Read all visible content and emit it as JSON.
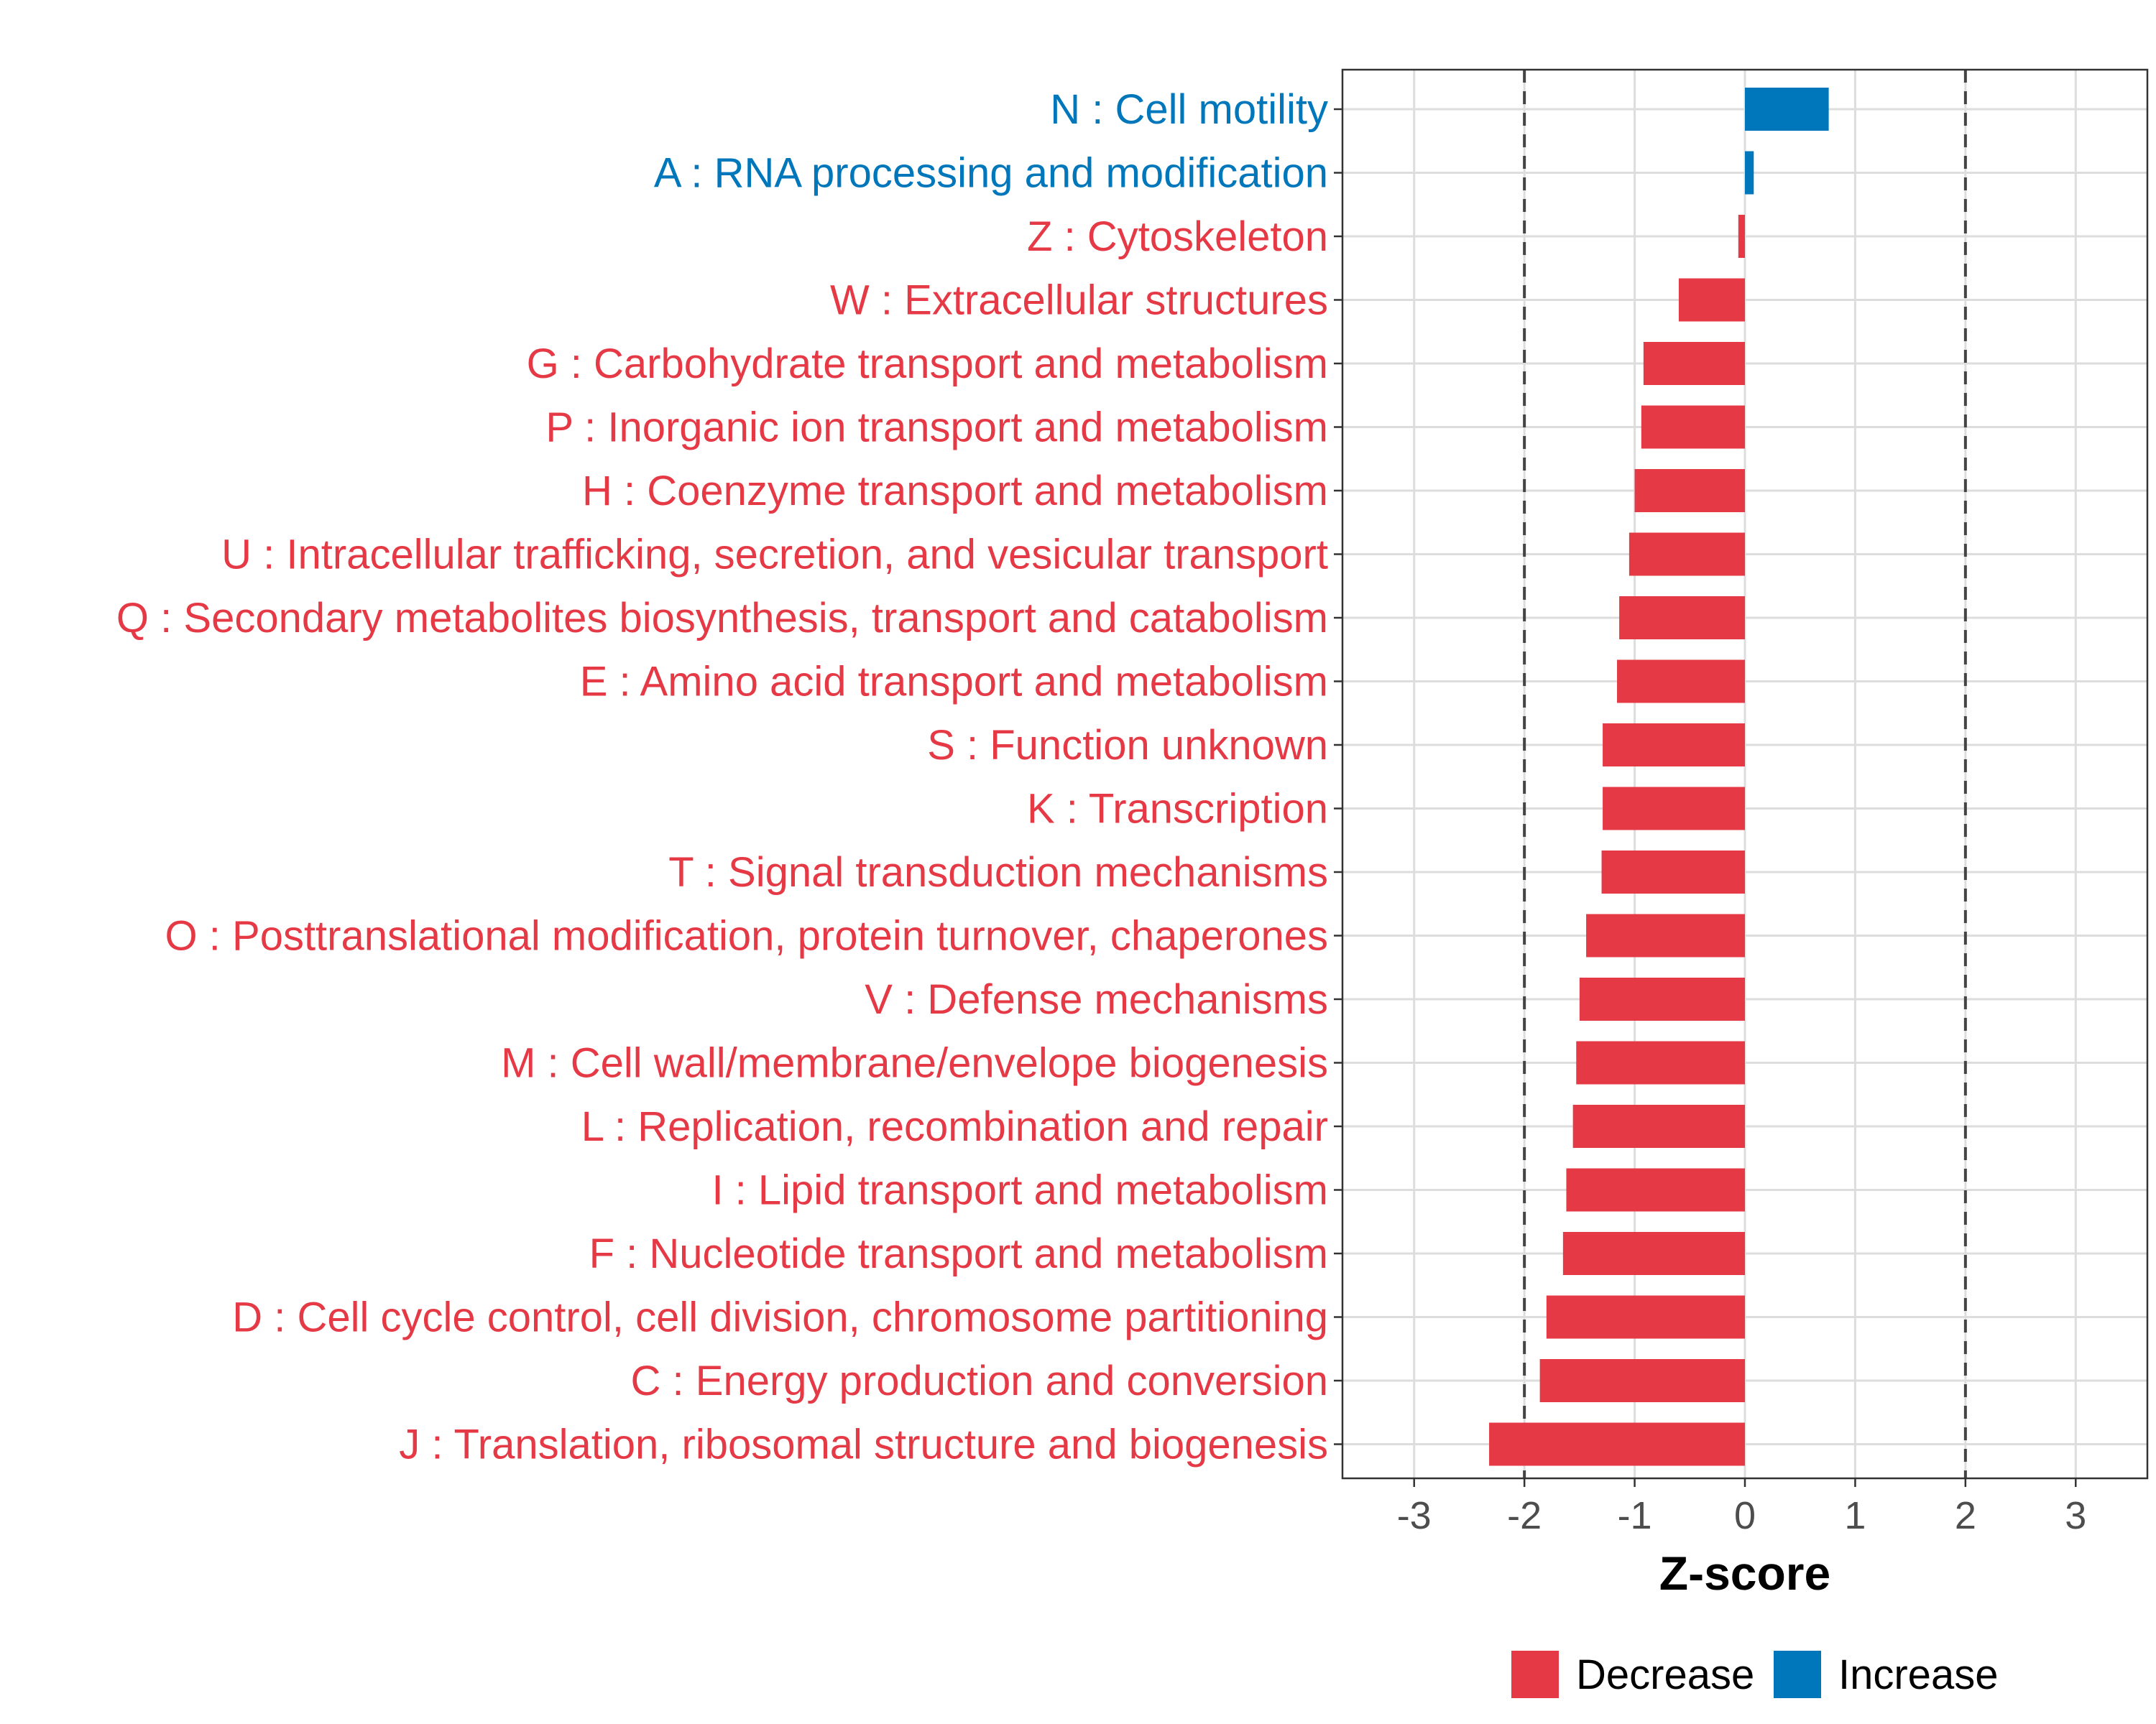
{
  "chart_data": {
    "type": "bar",
    "orientation": "horizontal",
    "xlabel": "Z-score",
    "xlim": [
      -3.65,
      3.65
    ],
    "xticks": [
      -3,
      -2,
      -1,
      0,
      1,
      2,
      3
    ],
    "tick_labels": [
      "-3",
      "-2",
      "-1",
      "0",
      "1",
      "2",
      "3"
    ],
    "reference_lines": [
      -2,
      2
    ],
    "grid": true,
    "legend_position": "bottom",
    "colors": {
      "Decrease": "#e63946",
      "Increase": "#0077bb"
    },
    "legend": [
      {
        "name": "Decrease",
        "color": "#e63946"
      },
      {
        "name": "Increase",
        "color": "#0077bb"
      }
    ],
    "bars": [
      {
        "label": "N : Cell motility",
        "value": 0.76,
        "direction": "Increase"
      },
      {
        "label": "A : RNA processing and modification",
        "value": 0.08,
        "direction": "Increase"
      },
      {
        "label": "Z : Cytoskeleton",
        "value": -0.06,
        "direction": "Decrease"
      },
      {
        "label": "W : Extracellular structures",
        "value": -0.6,
        "direction": "Decrease"
      },
      {
        "label": "G : Carbohydrate transport and metabolism",
        "value": -0.92,
        "direction": "Decrease"
      },
      {
        "label": "P : Inorganic ion transport and metabolism",
        "value": -0.94,
        "direction": "Decrease"
      },
      {
        "label": "H : Coenzyme transport and metabolism",
        "value": -1.0,
        "direction": "Decrease"
      },
      {
        "label": "U : Intracellular trafficking, secretion, and vesicular transport",
        "value": -1.05,
        "direction": "Decrease"
      },
      {
        "label": "Q : Secondary metabolites biosynthesis, transport and catabolism",
        "value": -1.14,
        "direction": "Decrease"
      },
      {
        "label": "E : Amino acid transport and metabolism",
        "value": -1.16,
        "direction": "Decrease"
      },
      {
        "label": "S : Function unknown",
        "value": -1.29,
        "direction": "Decrease"
      },
      {
        "label": "K : Transcription",
        "value": -1.29,
        "direction": "Decrease"
      },
      {
        "label": "T : Signal transduction mechanisms",
        "value": -1.3,
        "direction": "Decrease"
      },
      {
        "label": "O : Posttranslational modification, protein turnover, chaperones",
        "value": -1.44,
        "direction": "Decrease"
      },
      {
        "label": "V : Defense mechanisms",
        "value": -1.5,
        "direction": "Decrease"
      },
      {
        "label": "M : Cell wall/membrane/envelope biogenesis",
        "value": -1.53,
        "direction": "Decrease"
      },
      {
        "label": "L : Replication, recombination and repair",
        "value": -1.56,
        "direction": "Decrease"
      },
      {
        "label": "I : Lipid transport and metabolism",
        "value": -1.62,
        "direction": "Decrease"
      },
      {
        "label": "F : Nucleotide transport and metabolism",
        "value": -1.65,
        "direction": "Decrease"
      },
      {
        "label": "D : Cell cycle control, cell division, chromosome partitioning",
        "value": -1.8,
        "direction": "Decrease"
      },
      {
        "label": "C : Energy production and conversion",
        "value": -1.86,
        "direction": "Decrease"
      },
      {
        "label": "J : Translation, ribosomal structure and biogenesis",
        "value": -2.32,
        "direction": "Decrease"
      }
    ]
  }
}
